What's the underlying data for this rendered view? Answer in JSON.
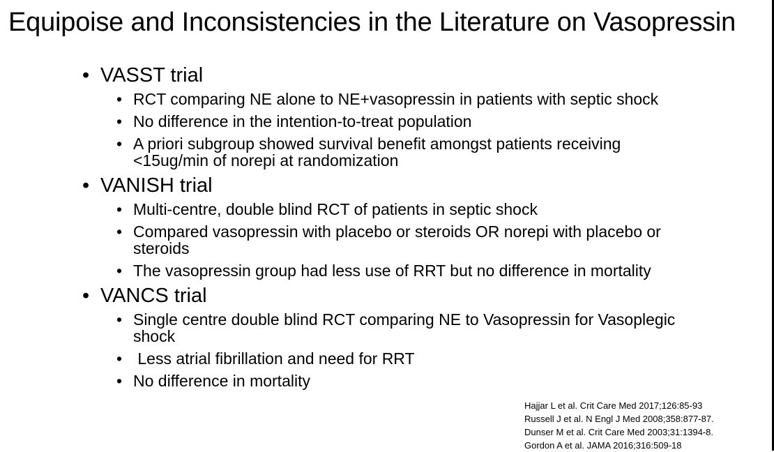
{
  "slide": {
    "title": "Equipoise and Inconsistencies in the Literature on Vasopressin"
  },
  "trials": [
    {
      "heading": "VASST trial",
      "points": [
        "RCT comparing NE alone to NE+vasopressin in patients with septic shock",
        "No difference in the intention-to-treat population",
        "A priori subgroup showed survival benefit amongst patients receiving <15ug/min of norepi at randomization"
      ]
    },
    {
      "heading": "VANISH trial",
      "points": [
        "Multi-centre, double blind RCT of patients in septic shock",
        "Compared vasopressin with placebo or steroids OR norepi with placebo or steroids",
        "The vasopressin group had less use of RRT but no difference in mortality"
      ]
    },
    {
      "heading": "VANCS trial",
      "points": [
        "Single centre double blind RCT comparing NE to Vasopressin for Vasoplegic shock",
        " Less atrial fibrillation and need for RRT",
        "No difference in mortality"
      ]
    }
  ],
  "references": [
    "Hajjar L et al. Crit Care Med 2017;126:85-93",
    "Russell J et al. N Engl J Med 2008;358:877-87.",
    "Dunser M et al. Crit Care Med 2003;31:1394-8.",
    "Gordon A et al. JAMA 2016;316:509-18"
  ]
}
